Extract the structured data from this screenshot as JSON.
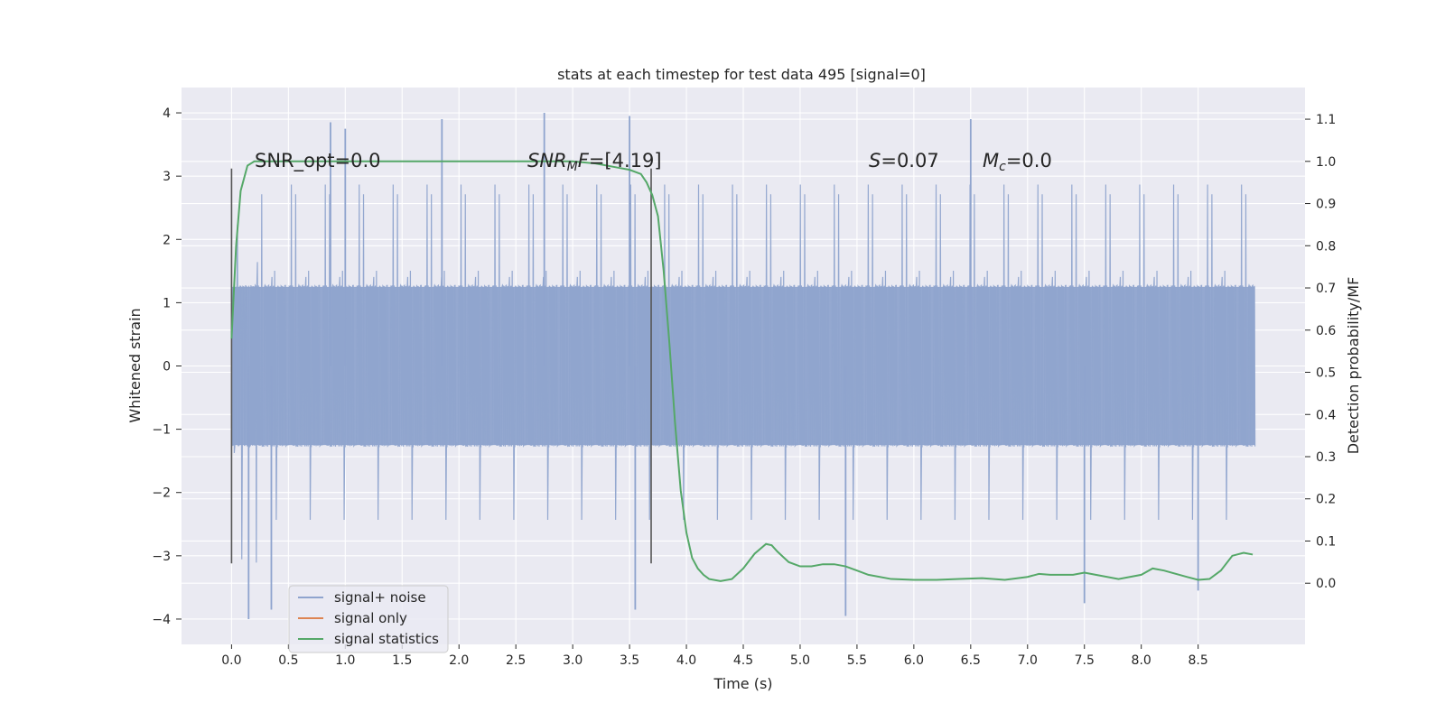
{
  "chart_data": {
    "type": "line",
    "title": "stats at each timestep for test data 495 [signal=0]",
    "xlabel": "Time (s)",
    "ylabel_left": "Whitened strain",
    "ylabel_right": "Detection probability/MF",
    "xlim": [
      -0.44,
      9.44
    ],
    "ylim_left": [
      -4.4,
      4.4
    ],
    "ylim_right": [
      -0.145,
      1.175
    ],
    "grid": true,
    "x_ticks": [
      0.0,
      0.5,
      1.0,
      1.5,
      2.0,
      2.5,
      3.0,
      3.5,
      4.0,
      4.5,
      5.0,
      5.5,
      6.0,
      6.5,
      7.0,
      7.5,
      8.0,
      8.5
    ],
    "x_tick_labels": [
      "0.0",
      "0.5",
      "1.0",
      "1.5",
      "2.0",
      "2.5",
      "3.0",
      "3.5",
      "4.0",
      "4.5",
      "5.0",
      "5.5",
      "6.0",
      "6.5",
      "7.0",
      "7.5",
      "8.0",
      "8.5"
    ],
    "left_ticks": [
      4,
      3,
      2,
      1,
      0,
      -1,
      -2,
      -3,
      -4
    ],
    "left_tick_labels": [
      "4",
      "3",
      "2",
      "1",
      "0",
      "−1",
      "−2",
      "−3",
      "−4"
    ],
    "right_ticks": [
      1.1,
      1.0,
      0.9,
      0.8,
      0.7,
      0.6,
      0.5,
      0.4,
      0.3,
      0.2,
      0.1,
      0.0
    ],
    "right_tick_labels": [
      "1.1",
      "1.0",
      "0.9",
      "0.8",
      "0.7",
      "0.6",
      "0.5",
      "0.4",
      "0.3",
      "0.2",
      "0.1",
      "0.0"
    ],
    "annotations": {
      "snr_opt": "SNR_opt=0.0",
      "snr_mf_name": "SNR",
      "snr_mf_sub": "M",
      "snr_mf_tail": "F",
      "snr_mf_value": "=[4.19]",
      "s_name": "S",
      "s_value": "=0.07",
      "mc_name": "M",
      "mc_sub": "c",
      "mc_value": "=0.0"
    },
    "vertical_markers": [
      0.0,
      3.69
    ],
    "marker_range": [
      -3.12,
      3.12
    ],
    "legend": {
      "location": "lower-left",
      "entries": [
        "signal+ noise",
        "signal only",
        "signal statistics"
      ]
    },
    "series": [
      {
        "name": "signal+ noise",
        "axis": "left",
        "color": "#8fa4ce",
        "x_range": [
          0.0,
          9.0
        ],
        "envelope_abs": 1.25,
        "peaks": [
          {
            "x": 0.87,
            "y": 3.85
          },
          {
            "x": 1.0,
            "y": 3.75
          },
          {
            "x": 1.85,
            "y": 3.9
          },
          {
            "x": 2.75,
            "y": 4.0
          },
          {
            "x": 3.5,
            "y": 3.95
          },
          {
            "x": 6.5,
            "y": 3.9
          },
          {
            "x": 0.15,
            "y": -4.0
          },
          {
            "x": 0.35,
            "y": -3.85
          },
          {
            "x": 3.55,
            "y": -3.85
          },
          {
            "x": 5.4,
            "y": -3.95
          },
          {
            "x": 8.5,
            "y": -3.55
          },
          {
            "x": 7.5,
            "y": -3.75
          }
        ]
      },
      {
        "name": "signal only",
        "axis": "left",
        "color": "#dd8452",
        "x": [],
        "y": []
      },
      {
        "name": "signal statistics",
        "axis": "right",
        "color": "#55a868",
        "x": [
          0.0,
          0.04,
          0.08,
          0.14,
          0.2,
          0.3,
          0.5,
          1.0,
          1.5,
          2.0,
          2.5,
          2.8,
          3.0,
          3.2,
          3.4,
          3.5,
          3.6,
          3.65,
          3.7,
          3.75,
          3.8,
          3.85,
          3.9,
          3.95,
          4.0,
          4.05,
          4.1,
          4.15,
          4.2,
          4.3,
          4.4,
          4.5,
          4.6,
          4.7,
          4.75,
          4.8,
          4.9,
          5.0,
          5.1,
          5.2,
          5.3,
          5.4,
          5.5,
          5.6,
          5.8,
          6.0,
          6.2,
          6.4,
          6.6,
          6.8,
          7.0,
          7.1,
          7.2,
          7.4,
          7.5,
          7.6,
          7.8,
          8.0,
          8.1,
          8.2,
          8.4,
          8.5,
          8.6,
          8.7,
          8.8,
          8.9,
          8.98
        ],
        "y": [
          0.58,
          0.8,
          0.93,
          0.99,
          1.0,
          1.0,
          1.0,
          1.0,
          1.0,
          1.0,
          1.0,
          1.0,
          1.0,
          0.995,
          0.985,
          0.98,
          0.97,
          0.95,
          0.92,
          0.87,
          0.74,
          0.57,
          0.38,
          0.22,
          0.12,
          0.06,
          0.035,
          0.02,
          0.01,
          0.005,
          0.01,
          0.035,
          0.07,
          0.093,
          0.09,
          0.075,
          0.05,
          0.04,
          0.04,
          0.045,
          0.045,
          0.04,
          0.03,
          0.02,
          0.01,
          0.008,
          0.008,
          0.01,
          0.012,
          0.008,
          0.015,
          0.022,
          0.02,
          0.02,
          0.025,
          0.02,
          0.01,
          0.02,
          0.035,
          0.03,
          0.015,
          0.008,
          0.01,
          0.03,
          0.065,
          0.072,
          0.068
        ]
      }
    ]
  }
}
